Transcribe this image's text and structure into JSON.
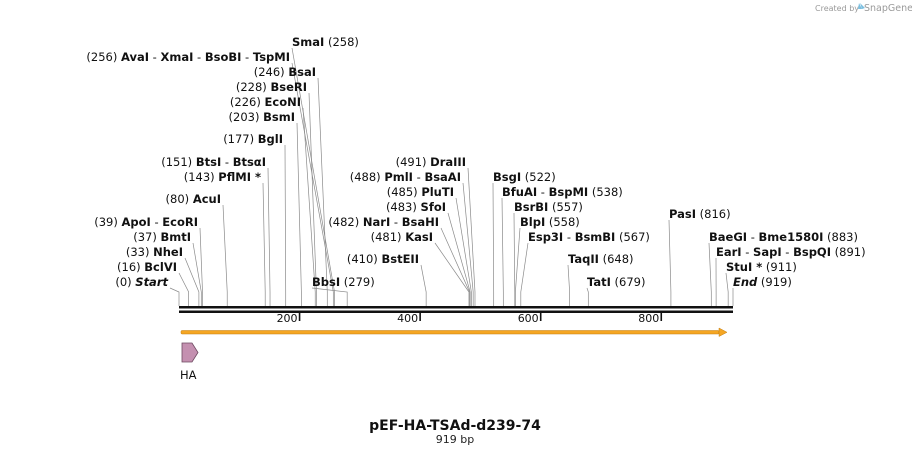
{
  "credit": {
    "text": "Created by",
    "brand": "SnapGene"
  },
  "title": "pEF-HA-TSAd-d239-74",
  "subtitle": "919 bp",
  "sequence_length": 919,
  "ticks": [
    {
      "pos": 200,
      "label": "200"
    },
    {
      "pos": 400,
      "label": "400"
    },
    {
      "pos": 600,
      "label": "600"
    },
    {
      "pos": 800,
      "label": "800"
    }
  ],
  "feature": {
    "name": "HA",
    "start": 1,
    "end": 28,
    "color": "#c490b0"
  },
  "arrow_color": "#f5a623",
  "labels_left": [
    {
      "parts": [
        {
          "t": "AvaI",
          "b": true
        },
        {
          "t": "  -  "
        },
        {
          "t": "XmaI",
          "b": true
        },
        {
          "t": "  -  "
        },
        {
          "t": "BsoBI",
          "b": true
        },
        {
          "t": "  -  "
        },
        {
          "t": "TspMI",
          "b": true
        }
      ],
      "pos_text": "(256)",
      "pos": 256
    },
    {
      "parts": [
        {
          "t": "BsaI",
          "b": true
        }
      ],
      "pos_text": "(246)",
      "pos": 246
    },
    {
      "parts": [
        {
          "t": "BseRI",
          "b": true
        }
      ],
      "pos_text": "(228)",
      "pos": 228
    },
    {
      "parts": [
        {
          "t": "EcoNI",
          "b": true
        }
      ],
      "pos_text": "(226)",
      "pos": 226
    },
    {
      "parts": [
        {
          "t": "BsmI",
          "b": true
        }
      ],
      "pos_text": "(203)",
      "pos": 203
    },
    {
      "parts": [
        {
          "t": "BglI",
          "b": true
        }
      ],
      "pos_text": "(177)",
      "pos": 177
    },
    {
      "parts": [
        {
          "t": "BtsI",
          "b": true
        },
        {
          "t": "  -  "
        },
        {
          "t": "BtsαI",
          "b": true
        }
      ],
      "pos_text": "(151)",
      "pos": 151
    },
    {
      "parts": [
        {
          "t": "PflMI *",
          "b": true
        }
      ],
      "pos_text": "(143)",
      "pos": 143
    },
    {
      "parts": [
        {
          "t": "AcuI",
          "b": true
        }
      ],
      "pos_text": "(80)",
      "pos": 80
    },
    {
      "parts": [
        {
          "t": "ApoI",
          "b": true
        },
        {
          "t": "  -  "
        },
        {
          "t": "EcoRI",
          "b": true
        }
      ],
      "pos_text": "(39)",
      "pos": 39
    },
    {
      "parts": [
        {
          "t": "BmtI",
          "b": true
        }
      ],
      "pos_text": "(37)",
      "pos": 37
    },
    {
      "parts": [
        {
          "t": "NheI",
          "b": true
        }
      ],
      "pos_text": "(33)",
      "pos": 33
    },
    {
      "parts": [
        {
          "t": "BclVI",
          "b": true
        }
      ],
      "pos_text": "(16)",
      "pos": 16
    },
    {
      "parts": [
        {
          "t": "Start",
          "b": true,
          "i": true
        }
      ],
      "pos_text": "(0)",
      "pos": 0
    },
    {
      "parts": [
        {
          "t": "BstEII",
          "b": true
        }
      ],
      "pos_text": "(410)",
      "pos": 410
    },
    {
      "parts": [
        {
          "t": "DraIII",
          "b": true
        }
      ],
      "pos_text": "(491)",
      "pos": 491
    },
    {
      "parts": [
        {
          "t": "PmlI",
          "b": true
        },
        {
          "t": "  -  "
        },
        {
          "t": "BsaAI",
          "b": true
        }
      ],
      "pos_text": "(488)",
      "pos": 488
    },
    {
      "parts": [
        {
          "t": "PluTI",
          "b": true
        }
      ],
      "pos_text": "(485)",
      "pos": 485
    },
    {
      "parts": [
        {
          "t": "SfoI",
          "b": true
        }
      ],
      "pos_text": "(483)",
      "pos": 483
    },
    {
      "parts": [
        {
          "t": "NarI",
          "b": true
        },
        {
          "t": "  -  "
        },
        {
          "t": "BsaHI",
          "b": true
        }
      ],
      "pos_text": "(482)",
      "pos": 482
    },
    {
      "parts": [
        {
          "t": "KasI",
          "b": true
        }
      ],
      "pos_text": "(481)",
      "pos": 481
    }
  ],
  "labels_right": [
    {
      "parts": [
        {
          "t": "SmaI",
          "b": true
        }
      ],
      "pos_text": "(258)",
      "pos": 258
    },
    {
      "parts": [
        {
          "t": "BbsI",
          "b": true
        }
      ],
      "pos_text": "(279)",
      "pos": 279
    },
    {
      "parts": [
        {
          "t": "BsgI",
          "b": true
        }
      ],
      "pos_text": "(522)",
      "pos": 522
    },
    {
      "parts": [
        {
          "t": "BfuAI",
          "b": true
        },
        {
          "t": "  -  "
        },
        {
          "t": "BspMI",
          "b": true
        }
      ],
      "pos_text": "(538)",
      "pos": 538
    },
    {
      "parts": [
        {
          "t": "BsrBI",
          "b": true
        }
      ],
      "pos_text": "(557)",
      "pos": 557
    },
    {
      "parts": [
        {
          "t": "BlpI",
          "b": true
        }
      ],
      "pos_text": "(558)",
      "pos": 558
    },
    {
      "parts": [
        {
          "t": "Esp3I",
          "b": true
        },
        {
          "t": "  -  "
        },
        {
          "t": "BsmBI",
          "b": true
        }
      ],
      "pos_text": "(567)",
      "pos": 567
    },
    {
      "parts": [
        {
          "t": "TaqII",
          "b": true
        }
      ],
      "pos_text": "(648)",
      "pos": 648
    },
    {
      "parts": [
        {
          "t": "TatI",
          "b": true
        }
      ],
      "pos_text": "(679)",
      "pos": 679
    },
    {
      "parts": [
        {
          "t": "PasI",
          "b": true
        }
      ],
      "pos_text": "(816)",
      "pos": 816
    },
    {
      "parts": [
        {
          "t": "BaeGI",
          "b": true
        },
        {
          "t": "  -  "
        },
        {
          "t": "Bme1580I",
          "b": true
        }
      ],
      "pos_text": "(883)",
      "pos": 883
    },
    {
      "parts": [
        {
          "t": "EarI",
          "b": true
        },
        {
          "t": "  -  "
        },
        {
          "t": "SapI",
          "b": true
        },
        {
          "t": "  -  "
        },
        {
          "t": "BspQI",
          "b": true
        }
      ],
      "pos_text": "(891)",
      "pos": 891
    },
    {
      "parts": [
        {
          "t": "StuI *",
          "b": true
        }
      ],
      "pos_text": "(911)",
      "pos": 911
    },
    {
      "parts": [
        {
          "t": "End",
          "b": true,
          "i": true
        }
      ],
      "pos_text": "(919)",
      "pos": 919
    }
  ]
}
